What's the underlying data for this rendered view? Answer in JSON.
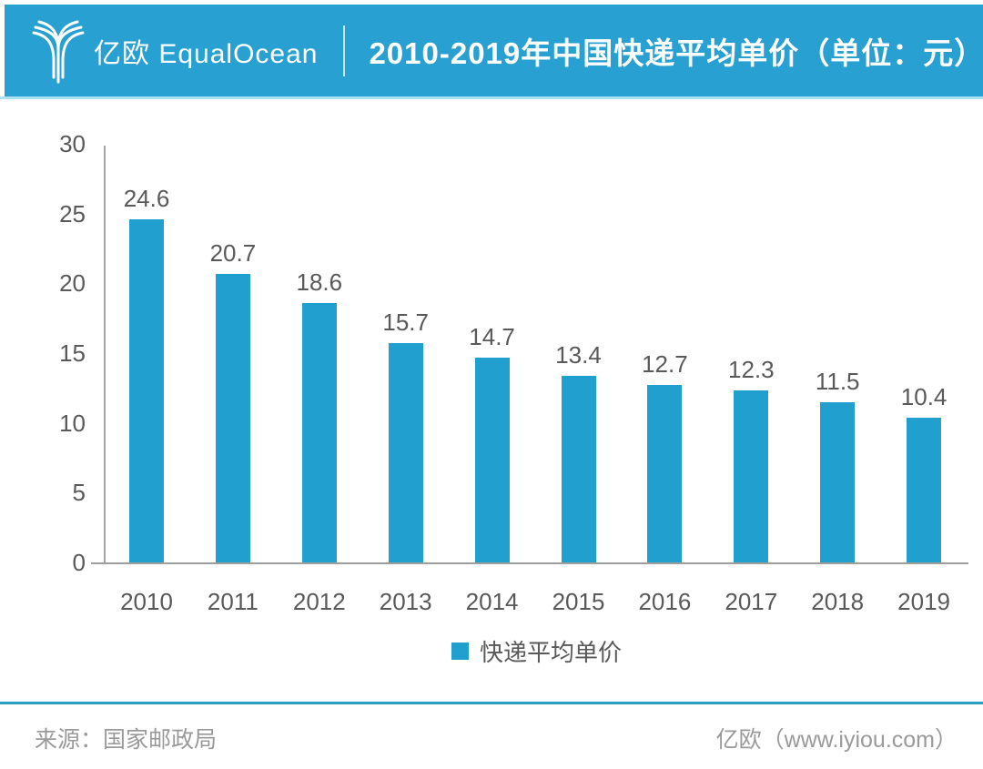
{
  "header": {
    "brand": "亿欧 EqualOcean",
    "title": "2010-2019年中国快递平均单价（单位：元）"
  },
  "chart_data": {
    "type": "bar",
    "title": "2010-2019年中国快递平均单价（单位：元）",
    "categories": [
      "2010",
      "2011",
      "2012",
      "2013",
      "2014",
      "2015",
      "2016",
      "2017",
      "2018",
      "2019"
    ],
    "values": [
      24.6,
      20.7,
      18.6,
      15.7,
      14.7,
      13.4,
      12.7,
      12.3,
      11.5,
      10.4
    ],
    "series_name": "快递平均单价",
    "xlabel": "",
    "ylabel": "",
    "ylim": [
      0,
      30
    ],
    "yticks": [
      30,
      25,
      20,
      15,
      10,
      5,
      0
    ],
    "grid": false,
    "legend_position": "bottom",
    "bar_color": "#219FCF",
    "label_color": "#595959"
  },
  "footer": {
    "source": "来源：国家邮政局",
    "site": "亿欧（www.iyiou.com）"
  },
  "colors": {
    "banner": "#28A0D2",
    "banner_underline": "#ABE1F3",
    "bar": "#219FCF",
    "axis": "#A6A6A6",
    "text": "#595959",
    "footer_divider": "#2D9EC0",
    "footer_text": "#9A9A9A"
  }
}
